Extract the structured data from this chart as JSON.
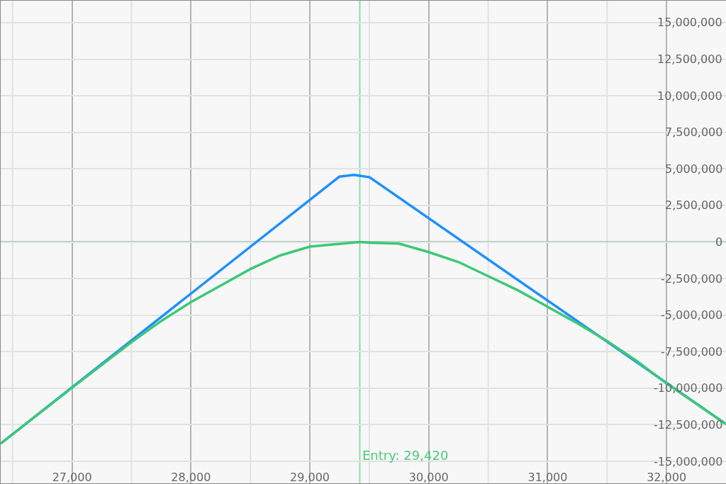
{
  "chart_data": {
    "type": "line",
    "series": [
      {
        "color": "#1e90ff",
        "x": [
          26400,
          29248,
          29373,
          29502,
          32500
        ],
        "values": [
          -13780000,
          4470000,
          4590000,
          4430000,
          -12450000
        ]
      },
      {
        "color": "#3cc878",
        "x": [
          26400,
          27000,
          27500,
          27750,
          28000,
          28250,
          28500,
          28750,
          29000,
          29420,
          29500,
          29750,
          30000,
          30250,
          30500,
          30750,
          31000,
          31250,
          31500,
          31750,
          32000,
          32500
        ],
        "values": [
          -13780000,
          -9960000,
          -6850000,
          -5400000,
          -4110000,
          -2980000,
          -1850000,
          -920000,
          -320000,
          0,
          -50000,
          -110000,
          -690000,
          -1370000,
          -2340000,
          -3300000,
          -4430000,
          -5560000,
          -6770000,
          -8140000,
          -9670000,
          -12450000
        ]
      }
    ],
    "xlim": [
      26400,
      32500
    ],
    "xticks": [
      {
        "value": 26500,
        "label": null
      },
      {
        "value": 27000,
        "label": "27,000"
      },
      {
        "value": 27500,
        "label": null
      },
      {
        "value": 28000,
        "label": "28,000"
      },
      {
        "value": 28500,
        "label": null
      },
      {
        "value": 29000,
        "label": "29,000"
      },
      {
        "value": 29500,
        "label": null
      },
      {
        "value": 30000,
        "label": "30,000"
      },
      {
        "value": 30500,
        "label": null
      },
      {
        "value": 31000,
        "label": "31,000"
      },
      {
        "value": 31500,
        "label": null
      },
      {
        "value": 32000,
        "label": "32,000"
      }
    ],
    "ylim": [
      -16500000,
      16500000
    ],
    "yticks": [
      {
        "value": -15000000,
        "label": "-15,000,000"
      },
      {
        "value": -12500000,
        "label": "-12,500,000"
      },
      {
        "value": -10000000,
        "label": "-10,000,000"
      },
      {
        "value": -7500000,
        "label": "-7,500,000"
      },
      {
        "value": -5000000,
        "label": "-5,000,000"
      },
      {
        "value": -2500000,
        "label": "-2,500,000"
      },
      {
        "value": 0,
        "label": "0"
      },
      {
        "value": 2500000,
        "label": "2,500,000"
      },
      {
        "value": 5000000,
        "label": "5,000,000"
      },
      {
        "value": 7500000,
        "label": "7,500,000"
      },
      {
        "value": 10000000,
        "label": "10,000,000"
      },
      {
        "value": 12500000,
        "label": "12,500,000"
      },
      {
        "value": 15000000,
        "label": "15,000,000"
      }
    ],
    "ref_lines": [
      {
        "axis": "x",
        "value": 29420,
        "label": "Entry: 29,420",
        "color": "#8fdcaa"
      },
      {
        "axis": "y",
        "value": 0,
        "label": null,
        "color": "#5f9f80"
      }
    ],
    "grid": true,
    "marker": "none",
    "line_style": "solid"
  }
}
